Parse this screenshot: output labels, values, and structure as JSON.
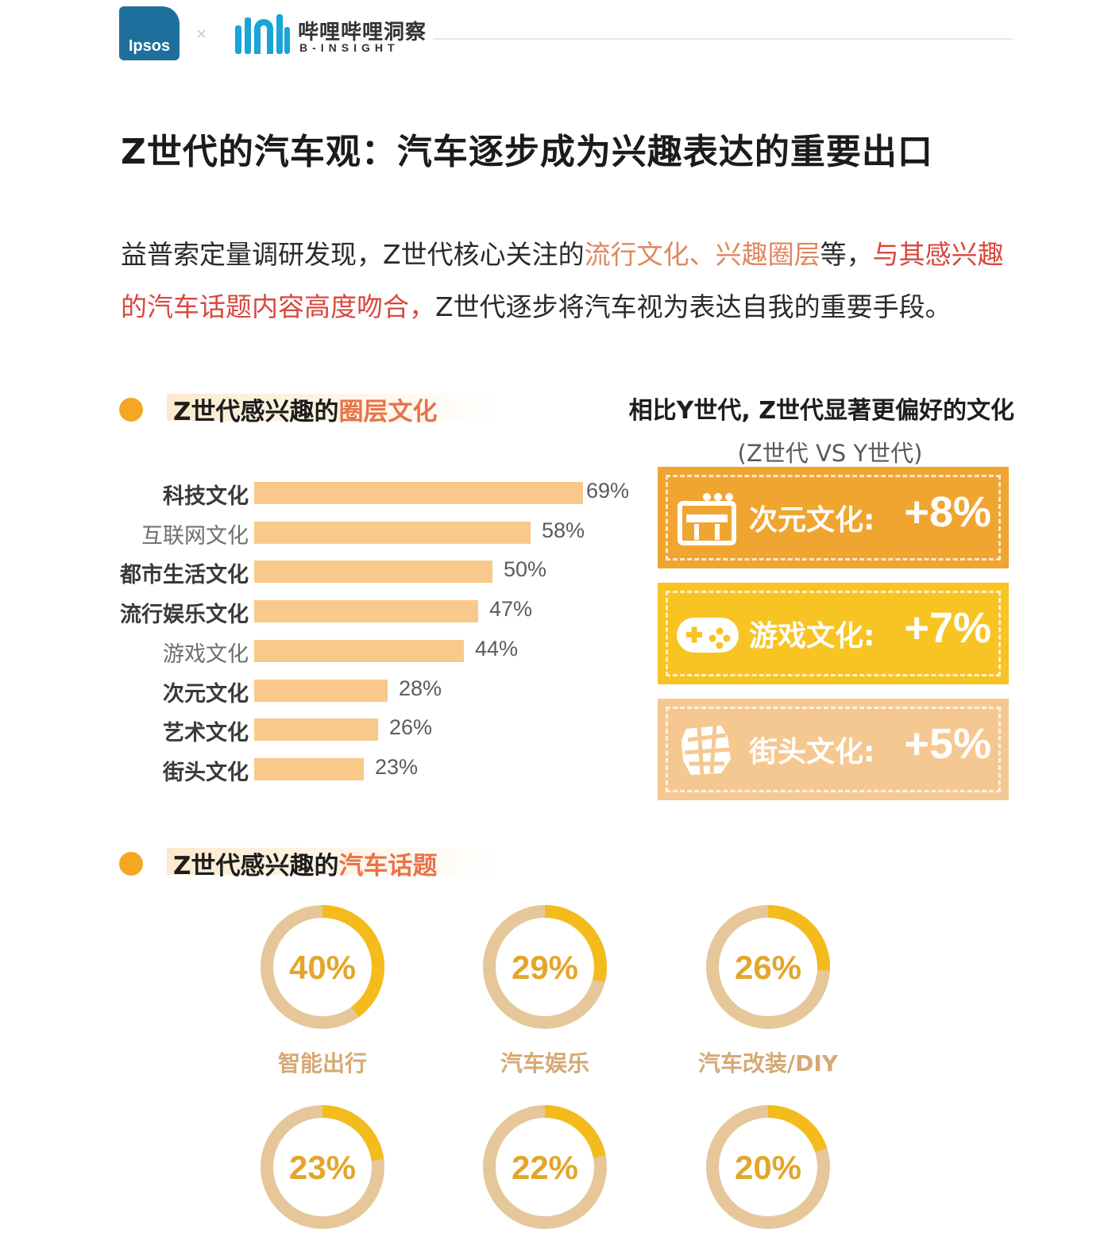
{
  "header": {
    "ipsos_logo": "Ipsos",
    "separator": "×",
    "bili_name": "哔哩哔哩洞察",
    "bili_sub": "B-INSIGHT"
  },
  "title": "Z世代的汽车观：汽车逐步成为兴趣表达的重要出口",
  "intro": {
    "p1": "益普索定量调研发现，Z世代核心关注的",
    "p2": "流行文化、兴趣圈层",
    "p3": "等，",
    "p4": "与其感兴趣的汽车话题内容高度吻合，",
    "p5": "Z世代逐步将汽车视为表达自我的重要手段。"
  },
  "section1": {
    "prefix": "Z世代感兴趣的",
    "accent": "圈层文化"
  },
  "section2": {
    "prefix": "Z世代感兴趣的",
    "accent": "汽车话题"
  },
  "colors": {
    "bar": "#f8c98a",
    "card1": "#f0a531",
    "card2": "#f7c423",
    "card3": "#f6c891",
    "donut_track": "#e5c79a",
    "donut_fill": "#f3bc1c",
    "donut_text": "#e3a62a"
  },
  "chart_data": [
    {
      "type": "bar",
      "orientation": "horizontal",
      "title": "Z世代感兴趣的圈层文化",
      "categories": [
        "科技文化",
        "互联网文化",
        "都市生活文化",
        "流行娱乐文化",
        "游戏文化",
        "次元文化",
        "艺术文化",
        "街头文化"
      ],
      "values": [
        69,
        58,
        50,
        47,
        44,
        28,
        26,
        23
      ],
      "value_labels": [
        "69%",
        "58%",
        "50%",
        "47%",
        "44%",
        "28%",
        "26%",
        "23%"
      ],
      "emphasis": [
        true,
        false,
        true,
        true,
        false,
        true,
        true,
        true
      ],
      "xlim": [
        0,
        100
      ]
    },
    {
      "type": "table",
      "title": "相比Y世代, Z世代显著更偏好的文化",
      "subtitle": "(Z世代 VS Y世代)",
      "rows": [
        {
          "label": "次元文化:",
          "value": "+8%",
          "icon": "anime-icon"
        },
        {
          "label": "游戏文化:",
          "value": "+7%",
          "icon": "gamepad-icon"
        },
        {
          "label": "街头文化:",
          "value": "+5%",
          "icon": "street-art-icon"
        }
      ]
    },
    {
      "type": "pie",
      "style": "donut",
      "title": "Z世代感兴趣的汽车话题",
      "items": [
        {
          "label": "智能出行",
          "value": 40,
          "value_label": "40%"
        },
        {
          "label": "汽车娱乐",
          "value": 29,
          "value_label": "29%"
        },
        {
          "label": "汽车改装/DIY",
          "value": 26,
          "value_label": "26%"
        },
        {
          "label": "",
          "value": 23,
          "value_label": "23%"
        },
        {
          "label": "",
          "value": 22,
          "value_label": "22%"
        },
        {
          "label": "",
          "value": 20,
          "value_label": "20%"
        }
      ]
    }
  ]
}
